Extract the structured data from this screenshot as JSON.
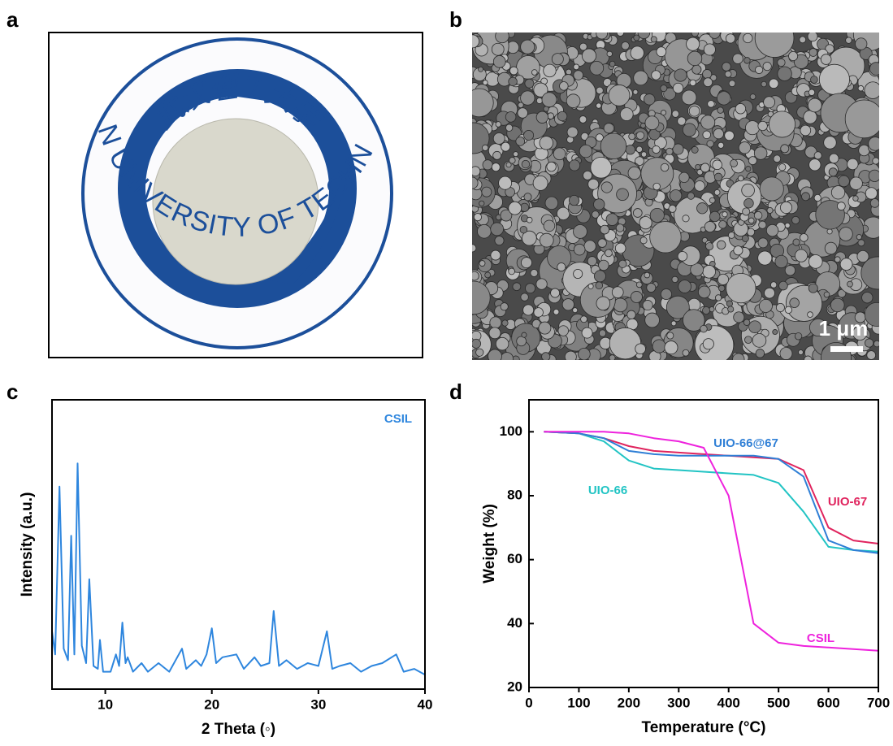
{
  "panels": [
    "a",
    "b",
    "c",
    "d"
  ],
  "photo": {
    "top_text": "武汉理工大学",
    "ring_text": "WUHAN UNIVERSITY OF TECHNOLOGY"
  },
  "sem": {
    "scale_label": "1 μm"
  },
  "chart_data": [
    {
      "type": "line",
      "x_label": "2 Theta (◦)",
      "y_label": "Intensity (a.u.)",
      "xlim": [
        5,
        40
      ],
      "xticks": [
        10,
        20,
        30,
        40
      ],
      "ylim": [
        0,
        100
      ],
      "x": [
        5,
        5.3,
        5.7,
        6.1,
        6.5,
        6.8,
        7.1,
        7.4,
        7.8,
        8.2,
        8.5,
        8.9,
        9.3,
        9.5,
        9.8,
        10.5,
        11,
        11.3,
        11.6,
        11.9,
        12.1,
        12.6,
        13.4,
        14,
        15,
        16,
        17.2,
        17.6,
        18.5,
        19,
        19.5,
        20,
        20.4,
        21,
        22.3,
        23,
        24,
        24.6,
        25.4,
        25.8,
        26.3,
        27,
        28,
        29,
        30,
        30.8,
        31.3,
        32,
        33,
        34,
        35,
        36,
        37.3,
        38,
        39,
        40
      ],
      "series": [
        {
          "name": "CSIL",
          "color": "#2e86de",
          "values": [
            20,
            12,
            70,
            14,
            10,
            53,
            12,
            78,
            15,
            9,
            38,
            8,
            7,
            17,
            6,
            6,
            12,
            8,
            23,
            9,
            11,
            6,
            9,
            6,
            9,
            6,
            14,
            7,
            10,
            8,
            12,
            21,
            9,
            11,
            12,
            7,
            11,
            8,
            9,
            27,
            8,
            10,
            7,
            9,
            8,
            20,
            7,
            8,
            9,
            6,
            8,
            9,
            12,
            6,
            7,
            5
          ]
        }
      ]
    },
    {
      "type": "line",
      "x_label": "Temperature (°C)",
      "y_label": "Weight (%)",
      "xlim": [
        0,
        700
      ],
      "xticks": [
        0,
        100,
        200,
        300,
        400,
        500,
        600,
        700
      ],
      "ylim": [
        20,
        110
      ],
      "yticks": [
        20,
        40,
        60,
        80,
        100
      ],
      "x": [
        30,
        100,
        150,
        200,
        250,
        300,
        350,
        400,
        450,
        500,
        550,
        600,
        650,
        700
      ],
      "series": [
        {
          "name": "UIO-66",
          "color": "#22c4c4",
          "values": [
            100,
            99.5,
            97,
            91,
            88.5,
            88,
            87.5,
            87,
            86.5,
            84,
            75,
            64,
            63,
            62.5
          ]
        },
        {
          "name": "UIO-67",
          "color": "#e0245e",
          "values": [
            100,
            99.5,
            98,
            95.5,
            94,
            93.5,
            93,
            92.5,
            92,
            91.5,
            88,
            70,
            66,
            65
          ]
        },
        {
          "name": "UIO-66@67",
          "color": "#2f7fd6",
          "values": [
            100,
            99.5,
            98,
            94,
            93,
            92.5,
            92.5,
            92.5,
            92.5,
            91.5,
            86,
            66,
            63,
            62
          ]
        },
        {
          "name": "CSIL",
          "color": "#ee22dd",
          "values": [
            100,
            100,
            100,
            99.5,
            98,
            97,
            95,
            80,
            40,
            34,
            33,
            32.5,
            32,
            31.5
          ]
        }
      ]
    }
  ]
}
